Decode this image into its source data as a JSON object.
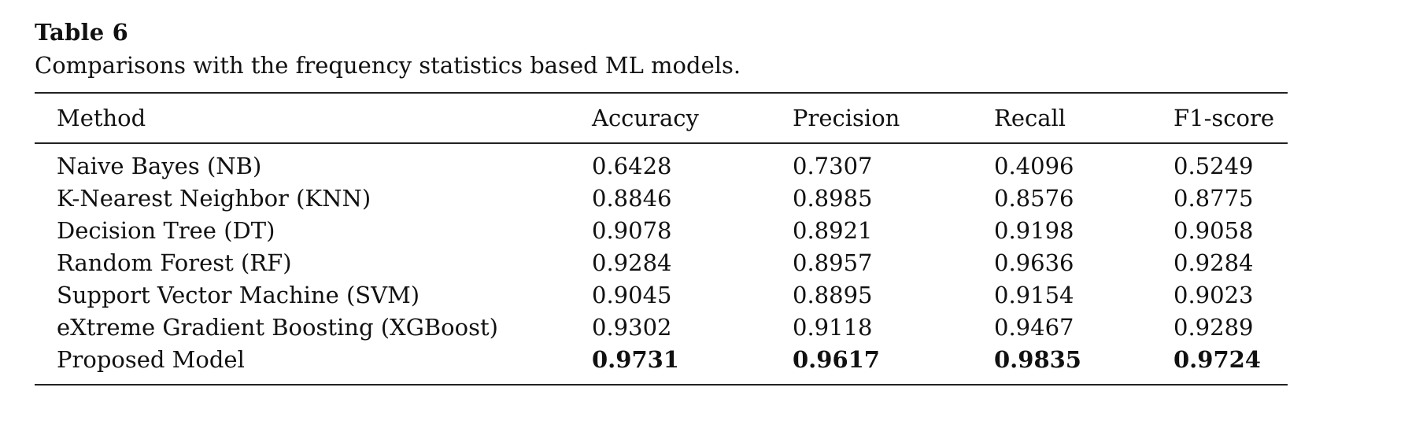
{
  "table": {
    "label": "Table 6",
    "caption": "Comparisons with the frequency statistics based ML models.",
    "columns": [
      "Method",
      "Accuracy",
      "Precision",
      "Recall",
      "F1-score"
    ],
    "rows": [
      {
        "method": "Naive Bayes (NB)",
        "accuracy": "0.6428",
        "precision": "0.7307",
        "recall": "0.4096",
        "f1": "0.5249"
      },
      {
        "method": "K-Nearest Neighbor (KNN)",
        "accuracy": "0.8846",
        "precision": "0.8985",
        "recall": "0.8576",
        "f1": "0.8775"
      },
      {
        "method": "Decision Tree (DT)",
        "accuracy": "0.9078",
        "precision": "0.8921",
        "recall": "0.9198",
        "f1": "0.9058"
      },
      {
        "method": "Random Forest (RF)",
        "accuracy": "0.9284",
        "precision": "0.8957",
        "recall": "0.9636",
        "f1": "0.9284"
      },
      {
        "method": "Support Vector Machine (SVM)",
        "accuracy": "0.9045",
        "precision": "0.8895",
        "recall": "0.9154",
        "f1": "0.9023"
      },
      {
        "method": "eXtreme Gradient Boosting (XGBoost)",
        "accuracy": "0.9302",
        "precision": "0.9118",
        "recall": "0.9467",
        "f1": "0.9289"
      },
      {
        "method": "Proposed Model",
        "accuracy": "0.9731",
        "precision": "0.9617",
        "recall": "0.9835",
        "f1": "0.9724"
      }
    ]
  }
}
